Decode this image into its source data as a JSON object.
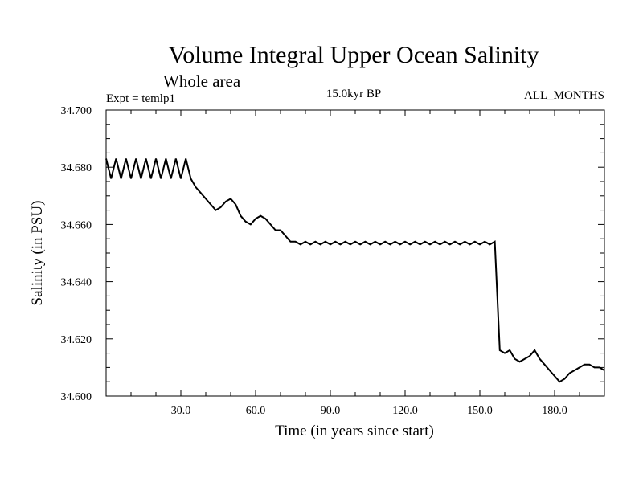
{
  "chart_data": {
    "type": "line",
    "title": "Volume Integral Upper Ocean Salinity",
    "subtitle": "Whole area",
    "annotations": {
      "left": "Expt = temlp1",
      "center": "15.0kyr BP",
      "right": "ALL_MONTHS"
    },
    "xlabel": "Time (in years since start)",
    "ylabel": "Salinity (in PSU)",
    "xlim": [
      0,
      200
    ],
    "ylim": [
      34.6,
      34.7
    ],
    "xticks": [
      30,
      60,
      90,
      120,
      150,
      180
    ],
    "xtick_labels": [
      "30.0",
      "60.0",
      "90.0",
      "120.0",
      "150.0",
      "180.0"
    ],
    "x_minor_step": 10,
    "yticks": [
      34.6,
      34.62,
      34.64,
      34.66,
      34.68,
      34.7
    ],
    "ytick_labels": [
      "34.600",
      "34.620",
      "34.640",
      "34.660",
      "34.680",
      "34.700"
    ],
    "y_minor_step": 0.005,
    "grid": false,
    "series": [
      {
        "name": "salinity",
        "color": "#000000",
        "x_start": 0,
        "x_step": 2,
        "values": [
          34.683,
          34.676,
          34.683,
          34.676,
          34.683,
          34.676,
          34.683,
          34.676,
          34.683,
          34.676,
          34.683,
          34.676,
          34.683,
          34.676,
          34.683,
          34.676,
          34.683,
          34.676,
          34.673,
          34.671,
          34.669,
          34.667,
          34.665,
          34.666,
          34.668,
          34.669,
          34.667,
          34.663,
          34.661,
          34.66,
          34.662,
          34.663,
          34.662,
          34.66,
          34.658,
          34.658,
          34.656,
          34.654,
          34.654,
          34.653,
          34.654,
          34.653,
          34.654,
          34.653,
          34.654,
          34.653,
          34.654,
          34.653,
          34.654,
          34.653,
          34.654,
          34.653,
          34.654,
          34.653,
          34.654,
          34.653,
          34.654,
          34.653,
          34.654,
          34.653,
          34.654,
          34.653,
          34.654,
          34.653,
          34.654,
          34.653,
          34.654,
          34.653,
          34.654,
          34.653,
          34.654,
          34.653,
          34.654,
          34.653,
          34.654,
          34.653,
          34.654,
          34.653,
          34.654,
          34.616,
          34.615,
          34.616,
          34.613,
          34.612,
          34.613,
          34.614,
          34.616,
          34.613,
          34.611,
          34.609,
          34.607,
          34.605,
          34.606,
          34.608,
          34.609,
          34.61,
          34.611,
          34.611,
          34.61,
          34.61,
          34.609
        ]
      }
    ]
  }
}
